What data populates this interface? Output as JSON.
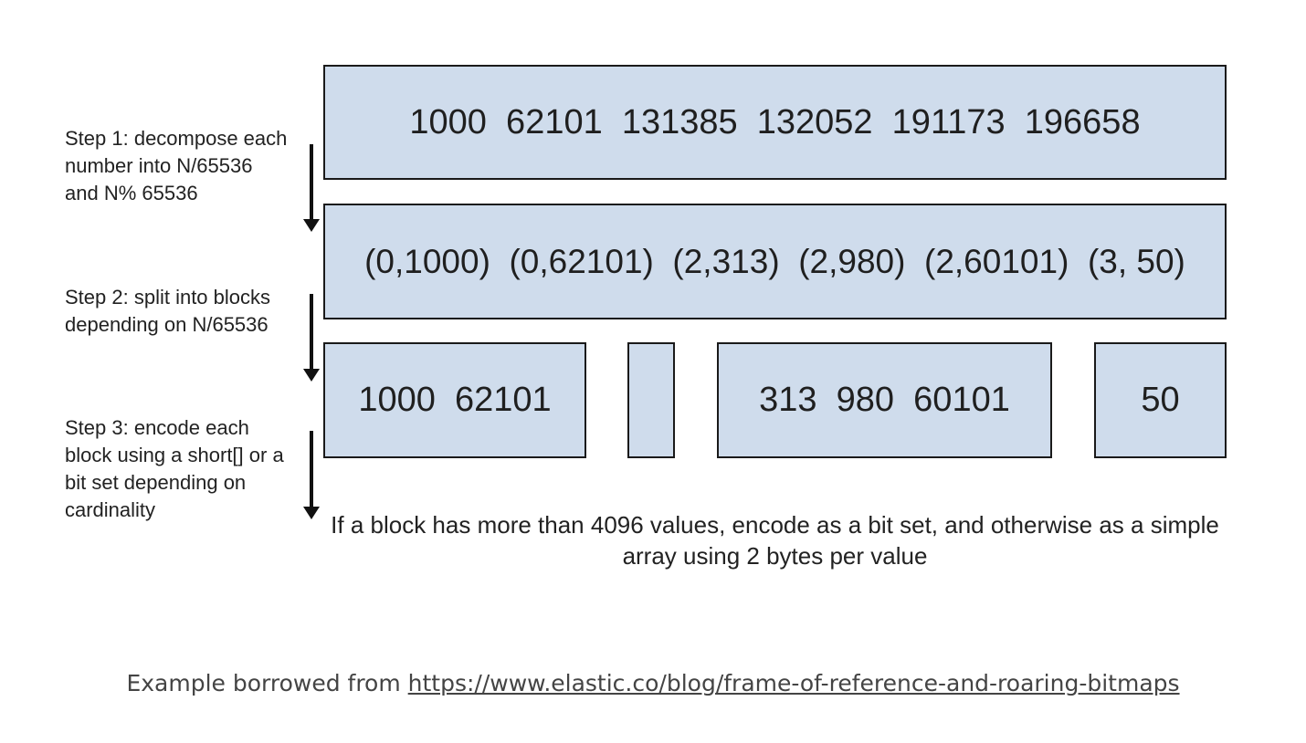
{
  "diagram": {
    "row1_values": "1000  62101  131385  132052  191173  196658",
    "row2_pairs": "(0,1000)  (0,62101)  (2,313)  (2,980)  (2,60101)  (3, 50)",
    "blocks": [
      {
        "text": "1000  62101"
      },
      {
        "text": ""
      },
      {
        "text": "313  980  60101"
      },
      {
        "text": "50"
      }
    ],
    "steps": [
      {
        "text": "Step 1: decompose each number into N/65536 and N% 65536"
      },
      {
        "text": "Step 2: split into blocks depending on N/65536"
      },
      {
        "text": "Step 3: encode each block using a short[] or a bit set depending on cardinality"
      }
    ],
    "note": "If a block has more than 4096 values, encode as a bit set, and otherwise as a simple array using 2 bytes per value",
    "colors": {
      "box_fill": "#cfdcec",
      "box_border": "#1a1a1a"
    }
  },
  "caption": {
    "prefix": "Example borrowed from ",
    "link_text": "https://www.elastic.co/blog/frame-of-reference-and-roaring-bitmaps"
  }
}
